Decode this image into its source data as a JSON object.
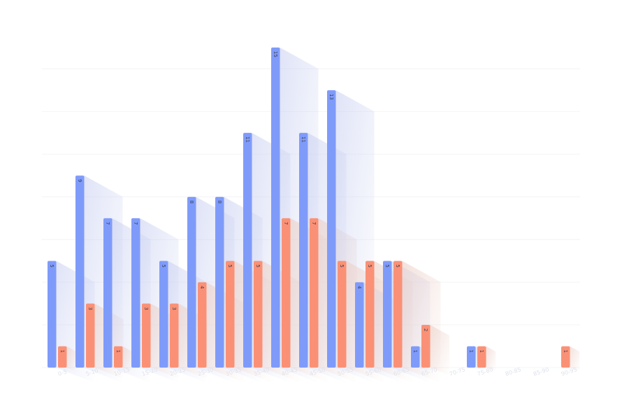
{
  "chart_data": {
    "type": "bar",
    "categories": [
      "0-5",
      "5-10",
      "10-15",
      "15-20",
      "20-25",
      "25-30",
      "30-35",
      "35-40",
      "40-45",
      "45-50",
      "50-55",
      "55-60",
      "60-65",
      "65-70",
      "70-75",
      "75-80",
      "80-85",
      "85-90",
      "90-95"
    ],
    "series": [
      {
        "values": [
          5,
          9,
          7,
          7,
          5,
          8,
          8,
          11,
          15,
          11,
          13,
          4,
          5,
          1,
          0,
          1,
          0,
          0,
          0
        ]
      },
      {
        "values": [
          1,
          3,
          1,
          3,
          3,
          4,
          5,
          5,
          7,
          7,
          5,
          5,
          5,
          2,
          0,
          1,
          0,
          0,
          1
        ]
      }
    ],
    "colors": [
      "#7f9bfa",
      "#fa9176"
    ],
    "ylim": [
      0,
      15
    ],
    "grid": true,
    "legend": "none"
  }
}
